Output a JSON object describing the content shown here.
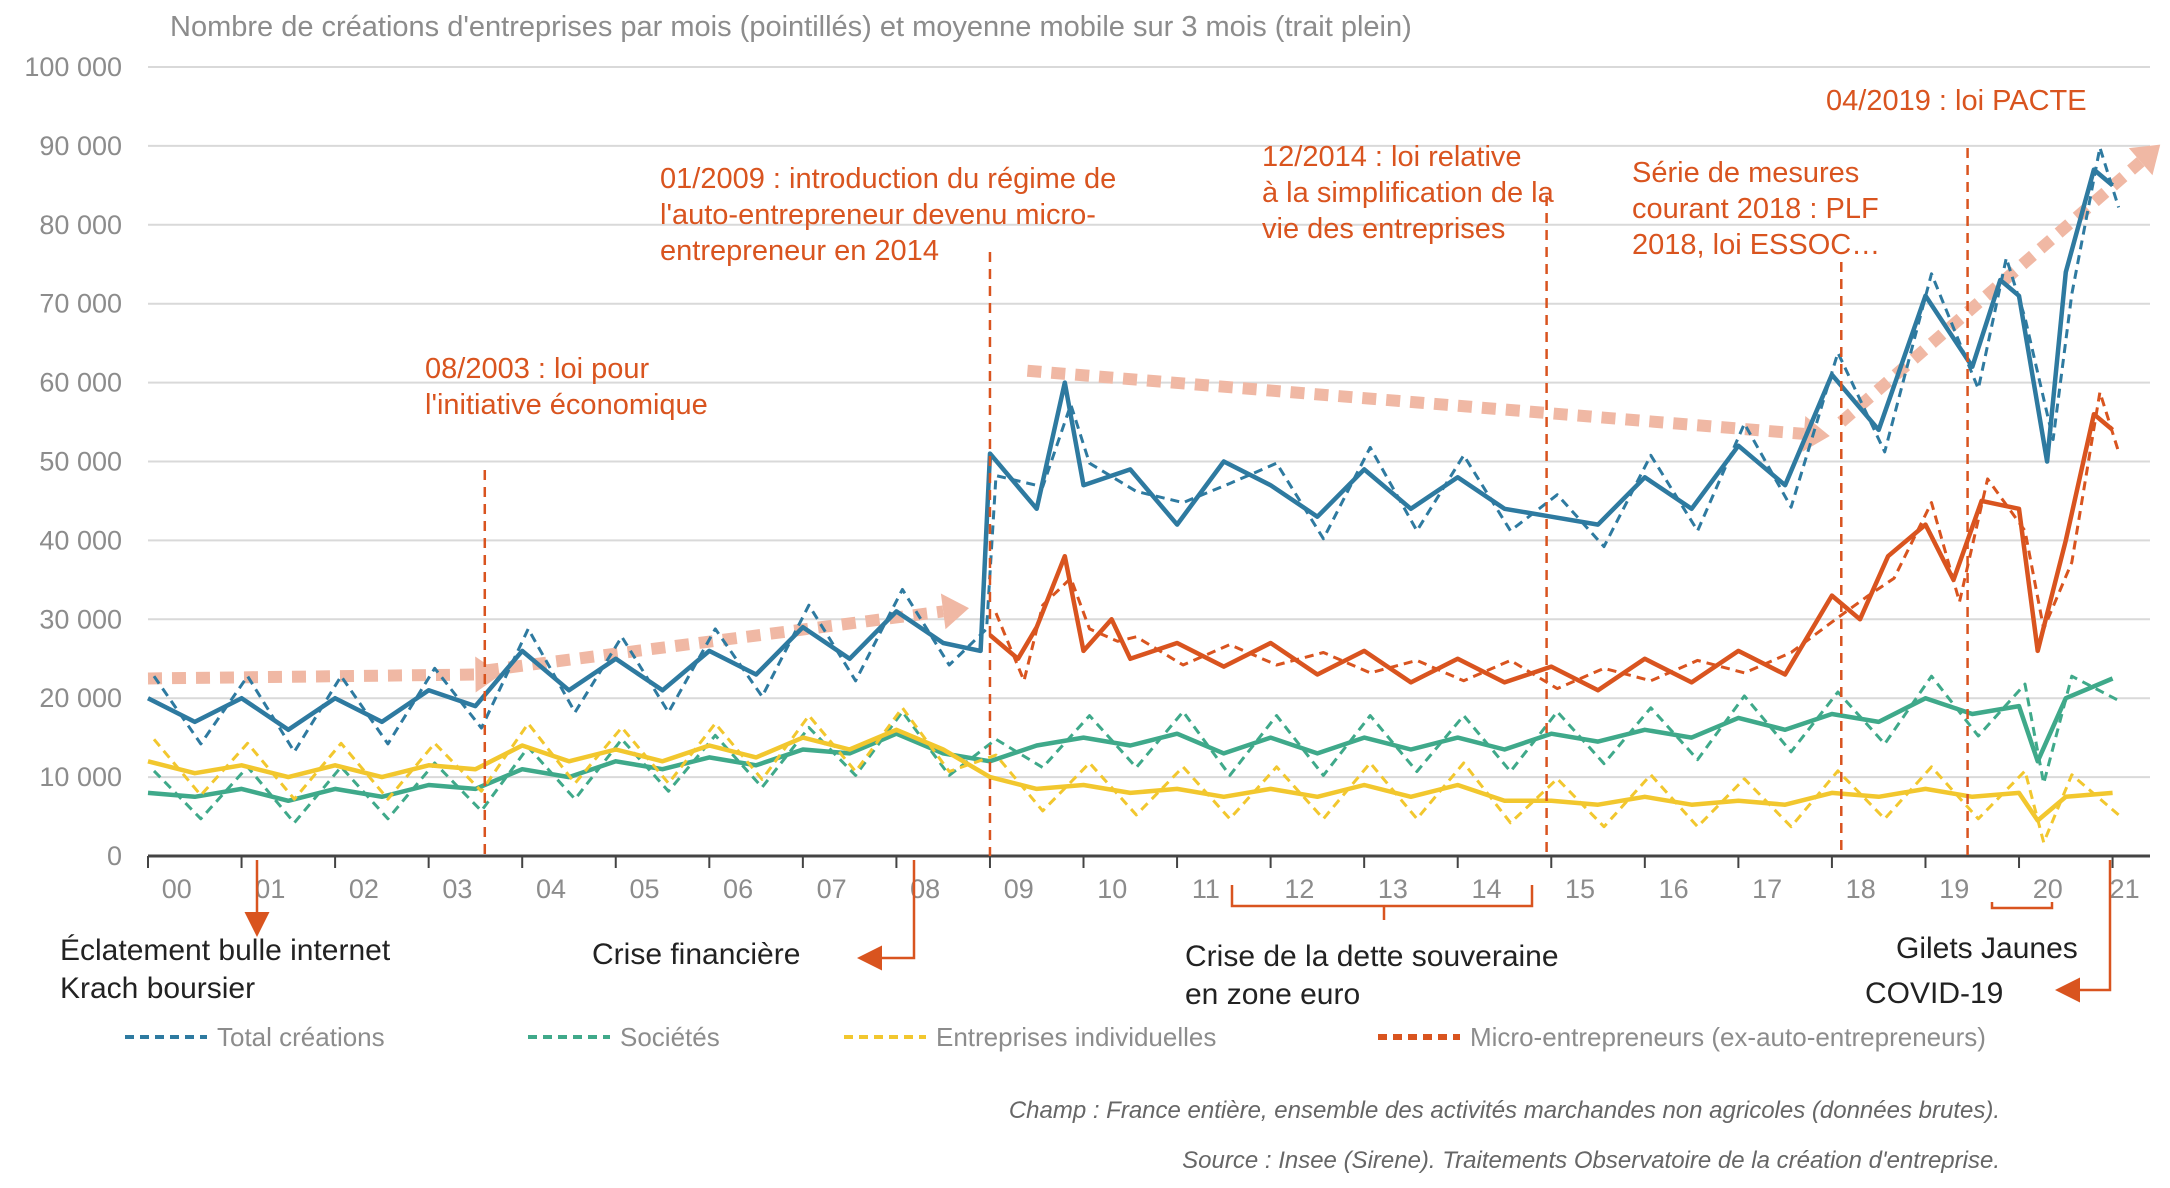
{
  "chart_data": {
    "type": "line",
    "title": "Nombre de créations d'entreprises par mois (pointillés) et moyenne mobile sur 3 mois (trait plein)",
    "ylim": [
      0,
      100000
    ],
    "yticks": [
      0,
      10000,
      20000,
      30000,
      40000,
      50000,
      60000,
      70000,
      80000,
      90000,
      100000
    ],
    "ytick_labels": [
      "0",
      "10 000",
      "20 000",
      "30 000",
      "40 000",
      "50 000",
      "60 000",
      "70 000",
      "80 000",
      "90 000",
      "100 000"
    ],
    "xlim": [
      2000,
      2021.4
    ],
    "xticks": [
      2000,
      2001,
      2002,
      2003,
      2004,
      2005,
      2006,
      2007,
      2008,
      2009,
      2010,
      2011,
      2012,
      2013,
      2014,
      2015,
      2016,
      2017,
      2018,
      2019,
      2020,
      2021
    ],
    "xtick_labels": [
      "00",
      "01",
      "02",
      "03",
      "04",
      "05",
      "06",
      "07",
      "08",
      "09",
      "10",
      "11",
      "12",
      "13",
      "14",
      "15",
      "16",
      "17",
      "18",
      "19",
      "20",
      "21"
    ],
    "grid": "horizontal",
    "legend_position": "bottom",
    "series": [
      {
        "name": "Total créations",
        "color": "#2e7aa0",
        "x": [
          2000.0,
          2000.5,
          2001.0,
          2001.5,
          2002.0,
          2002.5,
          2003.0,
          2003.5,
          2004.0,
          2004.5,
          2005.0,
          2005.5,
          2006.0,
          2006.5,
          2007.0,
          2007.5,
          2008.0,
          2008.5,
          2008.9,
          2009.0,
          2009.5,
          2009.8,
          2010.0,
          2010.5,
          2011.0,
          2011.5,
          2012.0,
          2012.5,
          2013.0,
          2013.5,
          2014.0,
          2014.5,
          2015.0,
          2015.5,
          2016.0,
          2016.5,
          2017.0,
          2017.5,
          2018.0,
          2018.5,
          2019.0,
          2019.5,
          2019.8,
          2020.0,
          2020.3,
          2020.5,
          2020.8,
          2021.0
        ],
        "y": [
          20000,
          17000,
          20000,
          16000,
          20000,
          17000,
          21000,
          19000,
          26000,
          21000,
          25000,
          21000,
          26000,
          23000,
          29000,
          25000,
          31000,
          27000,
          26000,
          51000,
          44000,
          60000,
          47000,
          49000,
          42000,
          50000,
          47000,
          43000,
          49000,
          44000,
          48000,
          44000,
          43000,
          42000,
          48000,
          44000,
          52000,
          47000,
          61000,
          54000,
          71000,
          62000,
          73000,
          71000,
          50000,
          74000,
          87000,
          85000
        ]
      },
      {
        "name": "Sociétés",
        "color": "#3fa98a",
        "x": [
          2000.0,
          2000.5,
          2001.0,
          2001.5,
          2002.0,
          2002.5,
          2003.0,
          2003.5,
          2004.0,
          2004.5,
          2005.0,
          2005.5,
          2006.0,
          2006.5,
          2007.0,
          2007.5,
          2008.0,
          2008.5,
          2009.0,
          2009.5,
          2010.0,
          2010.5,
          2011.0,
          2011.5,
          2012.0,
          2012.5,
          2013.0,
          2013.5,
          2014.0,
          2014.5,
          2015.0,
          2015.5,
          2016.0,
          2016.5,
          2017.0,
          2017.5,
          2018.0,
          2018.5,
          2019.0,
          2019.5,
          2020.0,
          2020.2,
          2020.5,
          2021.0
        ],
        "y": [
          8000,
          7500,
          8500,
          7000,
          8500,
          7500,
          9000,
          8500,
          11000,
          10000,
          12000,
          11000,
          12500,
          11500,
          13500,
          13000,
          15500,
          13000,
          12000,
          14000,
          15000,
          14000,
          15500,
          13000,
          15000,
          13000,
          15000,
          13500,
          15000,
          13500,
          15500,
          14500,
          16000,
          15000,
          17500,
          16000,
          18000,
          17000,
          20000,
          18000,
          19000,
          12000,
          20000,
          22500
        ]
      },
      {
        "name": "Entreprises individuelles",
        "color": "#f2c72e",
        "x": [
          2000.0,
          2000.5,
          2001.0,
          2001.5,
          2002.0,
          2002.5,
          2003.0,
          2003.5,
          2004.0,
          2004.5,
          2005.0,
          2005.5,
          2006.0,
          2006.5,
          2007.0,
          2007.5,
          2008.0,
          2008.5,
          2009.0,
          2009.5,
          2010.0,
          2010.5,
          2011.0,
          2011.5,
          2012.0,
          2012.5,
          2013.0,
          2013.5,
          2014.0,
          2014.5,
          2015.0,
          2015.5,
          2016.0,
          2016.5,
          2017.0,
          2017.5,
          2018.0,
          2018.5,
          2019.0,
          2019.5,
          2020.0,
          2020.2,
          2020.5,
          2021.0
        ],
        "y": [
          12000,
          10500,
          11500,
          10000,
          11500,
          10000,
          11500,
          11000,
          14000,
          12000,
          13500,
          12000,
          14000,
          12500,
          15000,
          13500,
          16000,
          13500,
          10000,
          8500,
          9000,
          8000,
          8500,
          7500,
          8500,
          7500,
          9000,
          7500,
          9000,
          7000,
          7000,
          6500,
          7500,
          6500,
          7000,
          6500,
          8000,
          7500,
          8500,
          7500,
          8000,
          4500,
          7500,
          8000
        ]
      },
      {
        "name": "Micro-entrepreneurs (ex-auto-entrepreneurs)",
        "color": "#d9541f",
        "x": [
          2009.0,
          2009.3,
          2009.5,
          2009.8,
          2010.0,
          2010.3,
          2010.5,
          2011.0,
          2011.5,
          2012.0,
          2012.5,
          2013.0,
          2013.5,
          2014.0,
          2014.5,
          2015.0,
          2015.5,
          2016.0,
          2016.5,
          2017.0,
          2017.5,
          2018.0,
          2018.3,
          2018.6,
          2019.0,
          2019.3,
          2019.6,
          2020.0,
          2020.2,
          2020.5,
          2020.8,
          2021.0
        ],
        "y": [
          28000,
          25000,
          29000,
          38000,
          26000,
          30000,
          25000,
          27000,
          24000,
          27000,
          23000,
          26000,
          22000,
          25000,
          22000,
          24000,
          21000,
          25000,
          22000,
          26000,
          23000,
          33000,
          30000,
          38000,
          42000,
          35000,
          45000,
          44000,
          26000,
          40000,
          56000,
          54000
        ]
      }
    ],
    "events": [
      {
        "x": 2003.6,
        "label": [
          "08/2003 : loi pour",
          "l'initiative  économique"
        ]
      },
      {
        "x": 2009.0,
        "label": [
          "01/2009 : introduction du régime de",
          "l'auto-entrepreneur  devenu micro-",
          "entrepreneur  en 2014"
        ]
      },
      {
        "x": 2014.95,
        "label": [
          "12/2014 : loi relative",
          "à la simplification de la",
          "vie des entreprises"
        ]
      },
      {
        "x": 2018.1,
        "label": [
          "Série de mesures",
          "courant 2018 : PLF",
          "2018, loi ESSOC…"
        ]
      },
      {
        "x": 2019.45,
        "label": [
          "04/2019 : loi PACTE"
        ]
      }
    ],
    "crises": [
      {
        "label": [
          "Éclatement bulle internet",
          "Krach boursier"
        ]
      },
      {
        "label": [
          "Crise financière"
        ]
      },
      {
        "label": [
          "Crise de la dette souveraine",
          "en zone euro"
        ]
      },
      {
        "label": [
          "Gilets Jaunes"
        ]
      },
      {
        "label": [
          "COVID-19"
        ]
      }
    ]
  },
  "footnotes": {
    "champ": "Champ : France entière, ensemble des activités marchandes non agricoles (données brutes).",
    "source": "Source : Insee (Sirene). Traitements Observatoire de la création d'entreprise."
  }
}
